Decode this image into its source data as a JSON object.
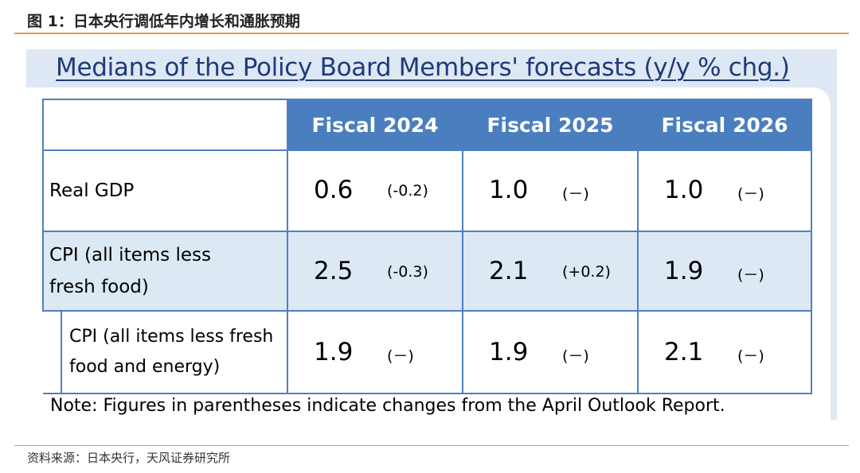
{
  "figure_title": "图 1：日本央行调低年内增长和通胀预期",
  "title": "Medians of the Policy Board Members' forecasts (y/y % chg.)",
  "columns": [
    "Fiscal 2024",
    "Fiscal 2025",
    "Fiscal 2026"
  ],
  "rows": [
    {
      "label_lines": [
        "Real GDP"
      ],
      "cells": [
        {
          "value": "0.6",
          "change": "(-0.2)"
        },
        {
          "value": "1.0",
          "change": "(－)"
        },
        {
          "value": "1.0",
          "change": "(－)"
        }
      ]
    },
    {
      "label_lines": [
        "CPI (all items less",
        "fresh food)"
      ],
      "cells": [
        {
          "value": "2.5",
          "change": "(-0.3)"
        },
        {
          "value": "2.1",
          "change": "(+0.2)"
        },
        {
          "value": "1.9",
          "change": "(－)"
        }
      ]
    },
    {
      "label_lines": [
        "CPI (all items less fresh",
        "food and energy)"
      ],
      "cells": [
        {
          "value": "1.9",
          "change": "(－)"
        },
        {
          "value": "1.9",
          "change": "(－)"
        },
        {
          "value": "2.1",
          "change": "(－)"
        }
      ]
    }
  ],
  "note": "Note: Figures in parentheses indicate changes from the April Outlook Report.",
  "source": "资料来源：日本央行，天风证券研究所"
}
